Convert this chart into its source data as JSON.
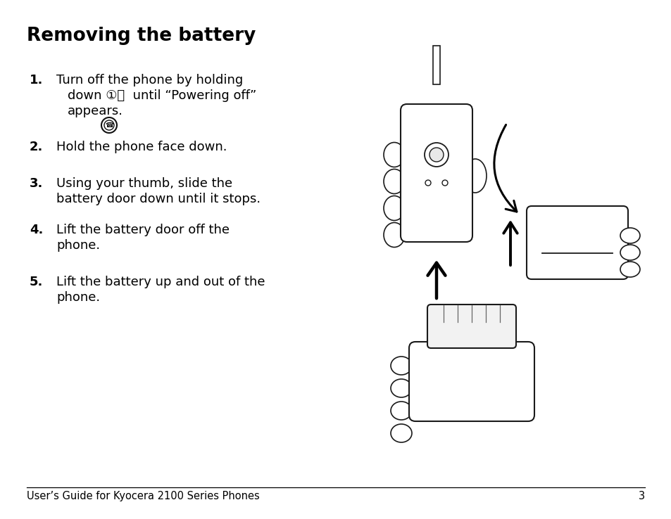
{
  "title": "Removing the battery",
  "background_color": "#ffffff",
  "text_color": "#000000",
  "footer_text": "User’s Guide for Kyocera 2100 Series Phones",
  "footer_page": "3",
  "footer_fontsize": 10.5,
  "title_fontsize": 19,
  "body_fontsize": 13,
  "number_fontsize": 13,
  "step1_num": "1.",
  "step1_line1": "Turn off the phone by holding",
  "step1_line2": "down ①ⓞ  until “Powering off”",
  "step1_line3": "appears.",
  "step2_num": "2.",
  "step2_line1": "Hold the phone face down.",
  "step3_num": "3.",
  "step3_line1": "Using your thumb, slide the",
  "step3_line2": "battery door down until it stops.",
  "step4_num": "4.",
  "step4_line1": "Lift the battery door off the",
  "step4_line2": "phone.",
  "step5_num": "5.",
  "step5_line1": "Lift the battery up and out of the",
  "step5_line2": "phone."
}
